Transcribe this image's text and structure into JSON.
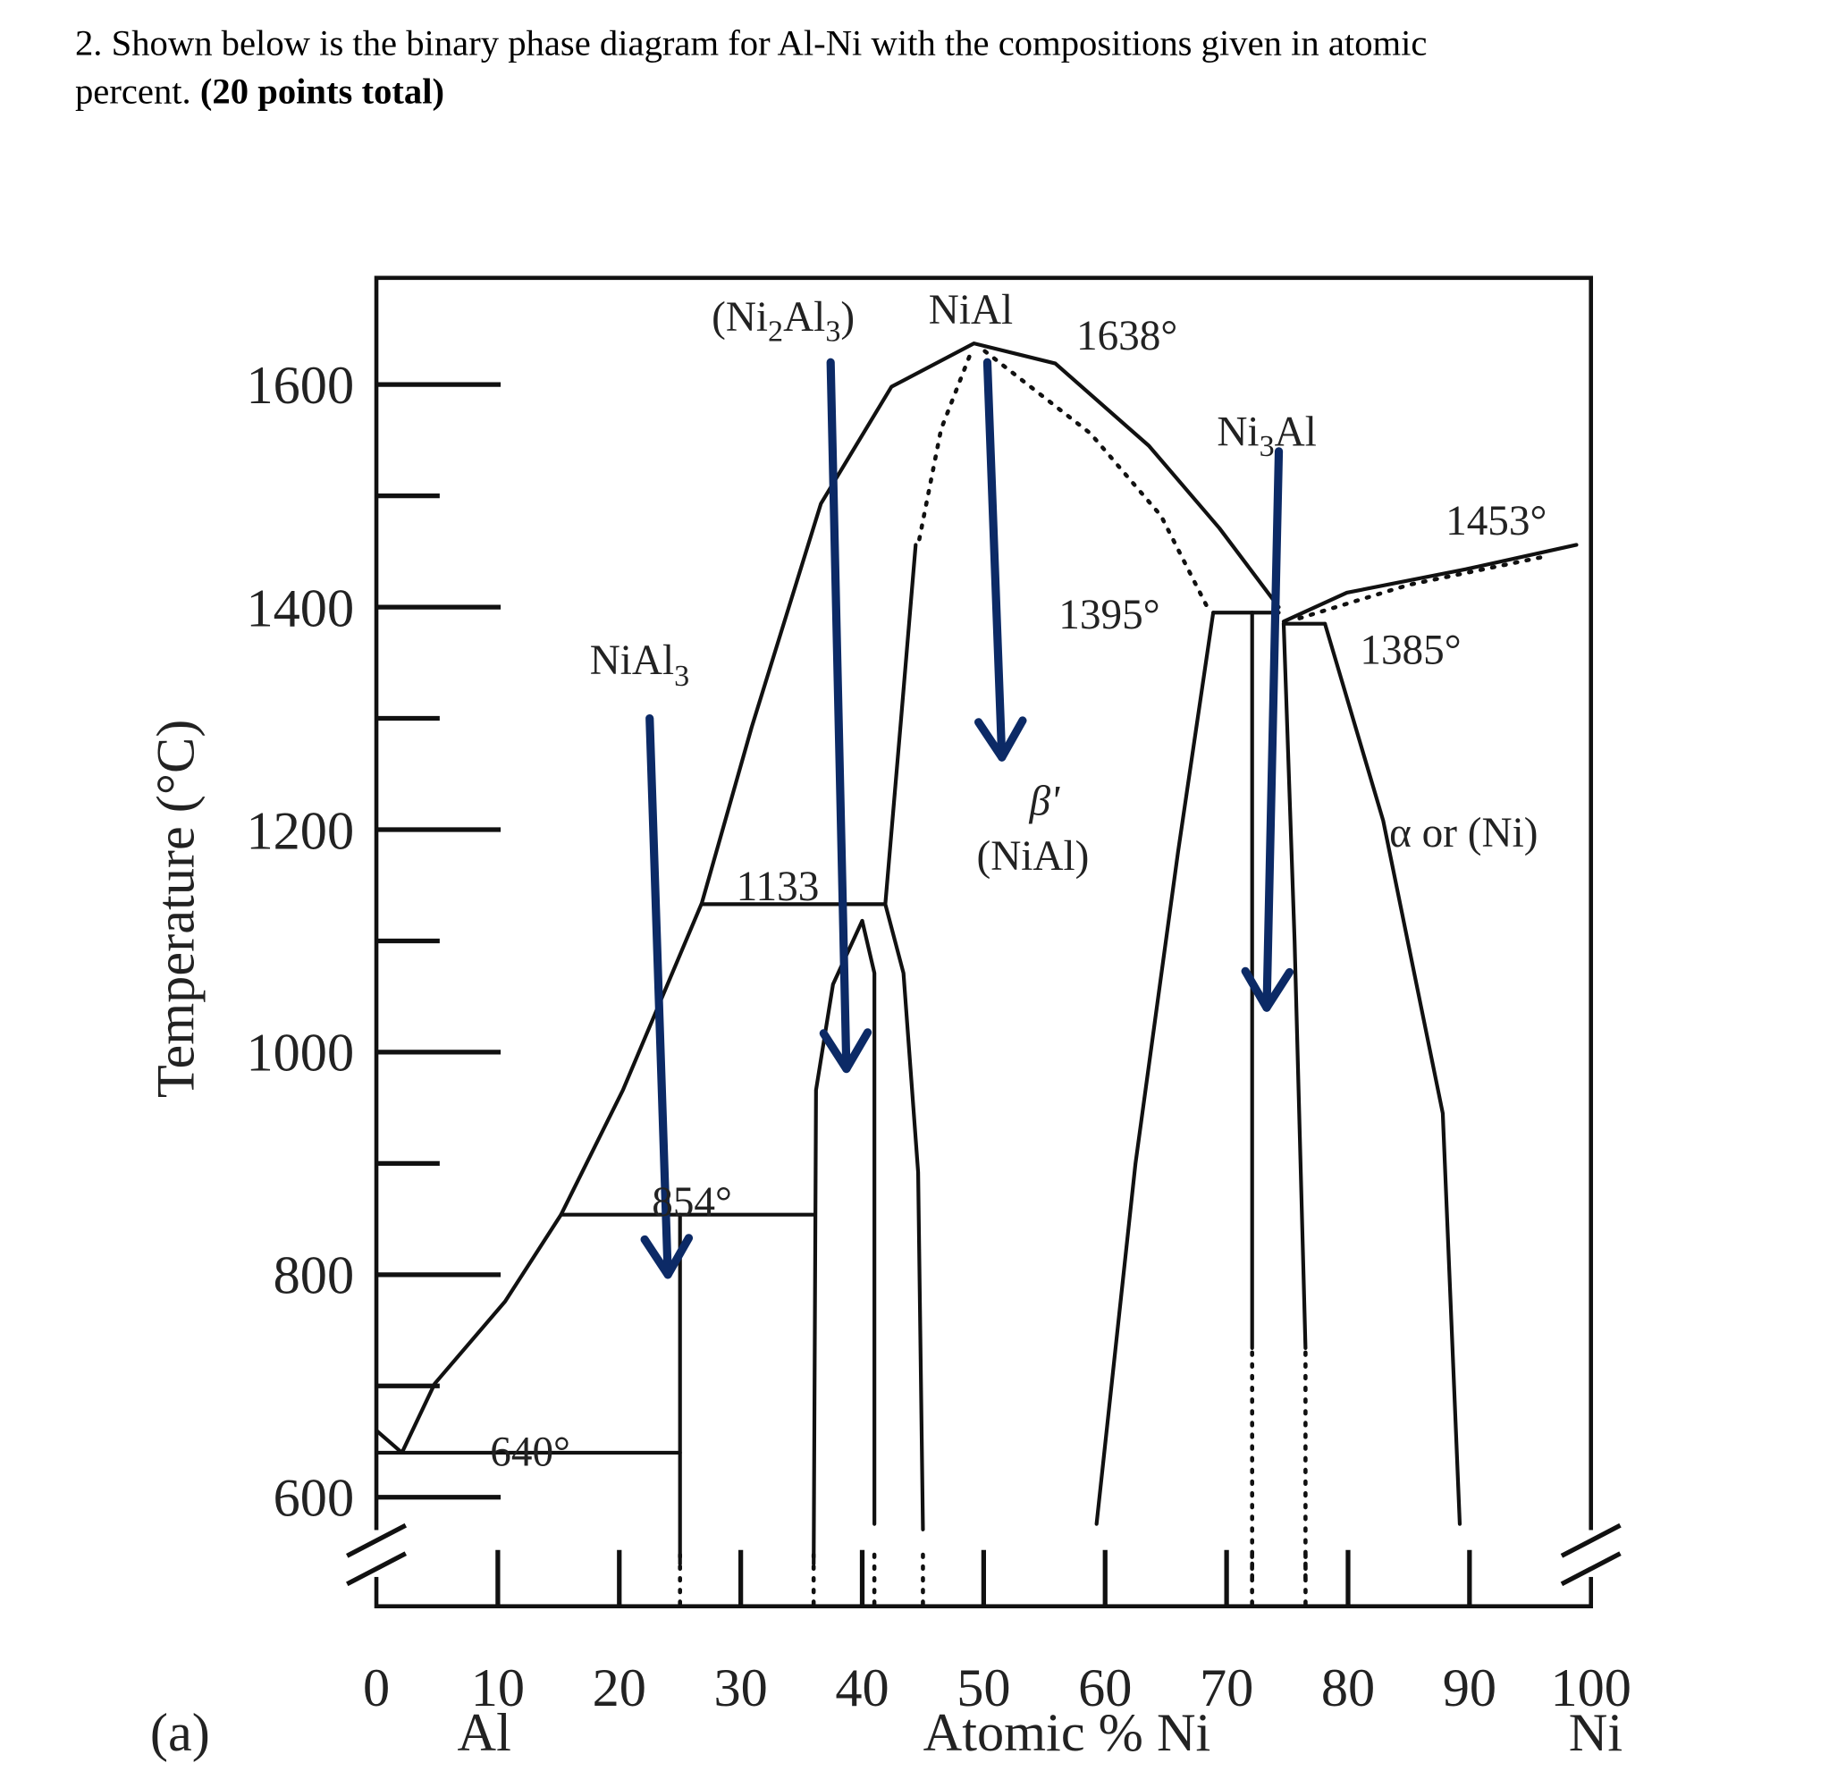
{
  "question": {
    "text": "2. Shown below is the binary phase diagram for Al-Ni with the compositions given in atomic",
    "text2": "percent. ",
    "points": "(20 points total)"
  },
  "chart_data": {
    "type": "phase-diagram",
    "panel_label": "(a)",
    "xlabel": "Atomic % Ni",
    "xlabel_left": "Al",
    "xlabel_right": "Ni",
    "ylabel": "Temperature (°C)",
    "xlim": [
      0,
      100
    ],
    "ylim": [
      520,
      1700
    ],
    "x_ticks": [
      "0",
      "10",
      "20",
      "30",
      "40",
      "50",
      "60",
      "70",
      "80",
      "90",
      "100"
    ],
    "y_ticks": [
      "600",
      "800",
      "1000",
      "1200",
      "1400",
      "1600"
    ],
    "colors": {
      "lines": "#111111",
      "arrows": "#0c2a66"
    },
    "curves": [
      {
        "name": "liquidus-left",
        "style": "solid",
        "points": [
          [
            0,
            660
          ],
          [
            2.1,
            640
          ],
          [
            4.8,
            702
          ],
          [
            10.6,
            776
          ],
          [
            15.2,
            854
          ],
          [
            20.3,
            966
          ],
          [
            26.8,
            1134
          ],
          [
            30.9,
            1292
          ],
          [
            36.6,
            1493
          ],
          [
            42.4,
            1598
          ],
          [
            49.2,
            1637
          ],
          [
            55.9,
            1619
          ],
          [
            63.6,
            1545
          ],
          [
            69.4,
            1471
          ],
          [
            74.3,
            1400
          ]
        ]
      },
      {
        "name": "liquidus-right",
        "style": "solid",
        "points": [
          [
            74.7,
            1387
          ],
          [
            79.9,
            1413
          ],
          [
            89.7,
            1434
          ],
          [
            98.8,
            1456
          ]
        ]
      },
      {
        "name": "solidus-ni",
        "style": "dotted",
        "points": [
          [
            76,
            1390
          ],
          [
            85,
            1420
          ],
          [
            96,
            1445
          ]
        ]
      },
      {
        "name": "eutectic-640",
        "style": "solid",
        "points": [
          [
            0,
            640
          ],
          [
            25,
            640
          ]
        ]
      },
      {
        "name": "nial3-line",
        "style": "solid",
        "points": [
          [
            25,
            854
          ],
          [
            25,
            540
          ]
        ]
      },
      {
        "name": "peritectic-854",
        "style": "solid",
        "points": [
          [
            15.2,
            854
          ],
          [
            36,
            854
          ]
        ]
      },
      {
        "name": "peritectic-1133",
        "style": "solid",
        "points": [
          [
            26.8,
            1133
          ],
          [
            41.9,
            1133
          ]
        ]
      },
      {
        "name": "ni2al3-left",
        "style": "solid",
        "points": [
          [
            36,
            540
          ],
          [
            36.2,
            966
          ],
          [
            37.6,
            1061
          ],
          [
            40,
            1118
          ]
        ]
      },
      {
        "name": "ni2al3-right",
        "style": "solid",
        "points": [
          [
            40,
            1118
          ],
          [
            41,
            1071
          ],
          [
            41,
            576
          ]
        ]
      },
      {
        "name": "nial-left-low",
        "style": "solid",
        "points": [
          [
            41.9,
            1133
          ],
          [
            43.4,
            1071
          ],
          [
            44.6,
            892
          ],
          [
            45,
            571
          ]
        ]
      },
      {
        "name": "nial-left-high",
        "style": "solid",
        "points": [
          [
            41.9,
            1133
          ],
          [
            43.2,
            1300
          ],
          [
            44.4,
            1456
          ]
        ]
      },
      {
        "name": "nial-solidus-left",
        "style": "dotted",
        "points": [
          [
            44.7,
            1461
          ],
          [
            46.5,
            1560
          ],
          [
            49,
            1630
          ]
        ]
      },
      {
        "name": "nial-solidus-right",
        "style": "dotted",
        "points": [
          [
            50.1,
            1630
          ],
          [
            58.8,
            1556
          ],
          [
            64.6,
            1482
          ],
          [
            68.5,
            1398
          ]
        ]
      },
      {
        "name": "peritectic-1395",
        "style": "solid",
        "points": [
          [
            68.9,
            1395
          ],
          [
            74.3,
            1395
          ]
        ]
      },
      {
        "name": "nial-right",
        "style": "solid",
        "points": [
          [
            68.9,
            1395
          ],
          [
            66,
            1180
          ],
          [
            62.5,
            900
          ],
          [
            59.3,
            576
          ]
        ]
      },
      {
        "name": "ni3al-left",
        "style": "solid",
        "points": [
          [
            72.1,
            1395
          ],
          [
            72.1,
            734
          ]
        ]
      },
      {
        "name": "ni3al-left-low",
        "style": "dotted",
        "points": [
          [
            72.1,
            730
          ],
          [
            72.1,
            520
          ]
        ]
      },
      {
        "name": "ni3al-right",
        "style": "solid",
        "points": [
          [
            74.7,
            1385
          ],
          [
            75.6,
            1100
          ],
          [
            76.5,
            734
          ]
        ]
      },
      {
        "name": "ni3al-right-low",
        "style": "dotted",
        "points": [
          [
            76.5,
            730
          ],
          [
            76.5,
            520
          ]
        ]
      },
      {
        "name": "eutectic-1385",
        "style": "solid",
        "points": [
          [
            74.7,
            1385
          ],
          [
            78.1,
            1385
          ]
        ]
      },
      {
        "name": "ni-solvus",
        "style": "solid",
        "points": [
          [
            78.1,
            1385
          ],
          [
            82.9,
            1208
          ],
          [
            87.8,
            945
          ],
          [
            89.2,
            576
          ]
        ]
      }
    ],
    "annotations": {
      "t1638": "1638°",
      "t1453": "1453°",
      "t1395": "1395°",
      "t1385": "1385°",
      "t1133": "1133",
      "t854": "854°",
      "t640": "640°",
      "beta": "β'",
      "nial_paren": "(NiAl)",
      "alpha": "α or (Ni)",
      "nial": "NiAl",
      "nial3": {
        "main": "NiAl",
        "sub": "3"
      },
      "ni2al3": {
        "a": "(Ni",
        "s1": "2",
        "b": "Al",
        "s2": "3",
        "c": ")"
      },
      "ni3al": {
        "a": "Ni",
        "s": "3",
        "b": "Al"
      }
    },
    "arrows": [
      {
        "name": "arrow-nial3",
        "from": [
          22.5,
          1300
        ],
        "to": [
          24,
          800
        ]
      },
      {
        "name": "arrow-ni2al3",
        "from": [
          37.4,
          1620
        ],
        "to": [
          38.7,
          985
        ]
      },
      {
        "name": "arrow-nial",
        "from": [
          50.3,
          1620
        ],
        "to": [
          51.5,
          1265
        ]
      },
      {
        "name": "arrow-ni3al",
        "from": [
          74.3,
          1540
        ],
        "to": [
          73.3,
          1040
        ]
      }
    ]
  }
}
